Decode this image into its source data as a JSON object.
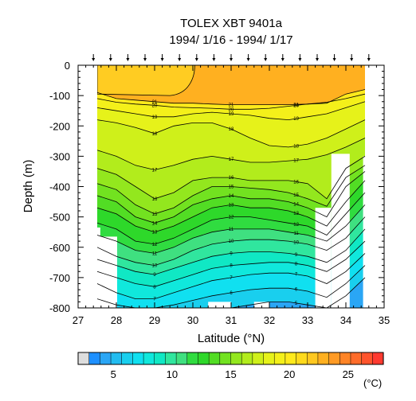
{
  "chart_data": {
    "type": "heatmap",
    "title": "TOLEX XBT 9401a",
    "subtitle": "1994/ 1/16 - 1994/ 1/17",
    "xlabel": "Latitude (°N)",
    "ylabel": "Depth (m)",
    "xlim": [
      27,
      35
    ],
    "ylim": [
      -800,
      0
    ],
    "x_ticks": [
      "27",
      "28",
      "29",
      "30",
      "31",
      "32",
      "33",
      "34",
      "35"
    ],
    "y_ticks": [
      "0",
      "-100",
      "-200",
      "-300",
      "-400",
      "-500",
      "-600",
      "-700",
      "-800"
    ],
    "colorbar": {
      "unit": "(°C)",
      "min": 2,
      "max": 28,
      "tick_labels": [
        "5",
        "10",
        "15",
        "20",
        "25"
      ],
      "tick_values": [
        5,
        10,
        15,
        20,
        25
      ],
      "colors": [
        "#dddddd",
        "#1e90ff",
        "#2aa6f5",
        "#22bcf0",
        "#19cfee",
        "#10e0f0",
        "#10e8dc",
        "#10e8c4",
        "#30e69e",
        "#3fe080",
        "#30dc40",
        "#2ed82a",
        "#52dd24",
        "#72e220",
        "#93e71e",
        "#b2ec1c",
        "#cff01a",
        "#e6f21a",
        "#f4f01a",
        "#ffea1c",
        "#ffda1c",
        "#ffc820",
        "#ffb020",
        "#ff9a24",
        "#ff8426",
        "#ff6c2a",
        "#ff542c",
        "#ff3a30"
      ]
    },
    "xbt_station_latitudes": [
      27.4,
      27.85,
      28.3,
      28.75,
      29.2,
      29.65,
      30.1,
      30.55,
      31.0,
      31.45,
      31.9,
      32.35,
      32.8,
      33.25,
      33.7,
      34.15,
      34.6
    ],
    "section_lat": [
      27.5,
      28.0,
      28.5,
      29.0,
      29.5,
      30.0,
      30.5,
      31.0,
      31.5,
      32.0,
      32.5,
      33.0,
      33.5,
      34.0,
      34.5
    ],
    "isotherms": [
      {
        "t": 21,
        "depth": [
          -90,
          -110,
          -115,
          -120,
          -125,
          -125,
          -128,
          -130,
          -130,
          -130,
          -130,
          -128,
          -125,
          -95,
          -80
        ]
      },
      {
        "t": 20,
        "depth": [
          -110,
          -122,
          -128,
          -132,
          -138,
          -140,
          -142,
          -145,
          -145,
          -142,
          -135,
          -128,
          -122,
          -110,
          -95
        ]
      },
      {
        "t": 19,
        "depth": [
          -140,
          -150,
          -160,
          -170,
          -170,
          -160,
          -155,
          -160,
          -165,
          -175,
          -180,
          -170,
          -160,
          -140,
          -120
        ]
      },
      {
        "t": 18,
        "depth": [
          -180,
          -190,
          -205,
          -225,
          -200,
          -190,
          -190,
          -210,
          -240,
          -265,
          -270,
          -260,
          -240,
          -210,
          -180
        ]
      },
      {
        "t": 17,
        "depth": [
          -280,
          -300,
          -330,
          -345,
          -330,
          -310,
          -300,
          -310,
          -320,
          -320,
          -315,
          -310,
          -295,
          -270,
          -240
        ]
      },
      {
        "t": 16,
        "depth": [
          -340,
          -360,
          -400,
          -440,
          -420,
          -380,
          -370,
          -370,
          -380,
          -380,
          -380,
          -390,
          -440,
          -340,
          -300
        ]
      },
      {
        "t": 15,
        "depth": [
          -390,
          -410,
          -460,
          -490,
          -470,
          -430,
          -400,
          -400,
          -405,
          -410,
          -420,
          -440,
          -465,
          -370,
          -330
        ]
      },
      {
        "t": 14,
        "depth": [
          -430,
          -450,
          -500,
          -520,
          -500,
          -460,
          -440,
          -430,
          -440,
          -440,
          -450,
          -470,
          -500,
          -400,
          -350
        ]
      },
      {
        "t": 13,
        "depth": [
          -470,
          -490,
          -530,
          -550,
          -530,
          -500,
          -470,
          -460,
          -470,
          -470,
          -480,
          -500,
          -530,
          -450,
          -380
        ]
      },
      {
        "t": 12,
        "depth": [
          -520,
          -540,
          -580,
          -590,
          -570,
          -540,
          -510,
          -500,
          -500,
          -510,
          -520,
          -530,
          -560,
          -490,
          -420
        ]
      },
      {
        "t": 11,
        "depth": [
          -560,
          -580,
          -610,
          -620,
          -600,
          -570,
          -550,
          -540,
          -540,
          -540,
          -550,
          -560,
          -580,
          -530,
          -460
        ]
      },
      {
        "t": 10,
        "depth": [
          -600,
          -630,
          -650,
          -660,
          -640,
          -610,
          -590,
          -580,
          -575,
          -575,
          -580,
          -590,
          -610,
          -570,
          -500
        ]
      },
      {
        "t": 9,
        "depth": [
          -640,
          -660,
          -680,
          -690,
          -670,
          -650,
          -630,
          -620,
          -615,
          -615,
          -620,
          -630,
          -650,
          -610,
          -540
        ]
      },
      {
        "t": 8,
        "depth": [
          -680,
          -700,
          -720,
          -730,
          -710,
          -690,
          -670,
          -660,
          -655,
          -650,
          -650,
          -660,
          -680,
          -640,
          -580
        ]
      },
      {
        "t": 7,
        "depth": [
          -720,
          -750,
          -770,
          -770,
          -750,
          -730,
          -710,
          -700,
          -690,
          -685,
          -685,
          -695,
          -720,
          -680,
          -620
        ]
      },
      {
        "t": 6,
        "depth": [
          -770,
          -790,
          -800,
          -800,
          -790,
          -775,
          -760,
          -750,
          -740,
          -735,
          -735,
          -745,
          -765,
          -720,
          -660
        ]
      },
      {
        "t": 5,
        "depth": [
          -800,
          -800,
          -800,
          -800,
          -800,
          -800,
          -800,
          -800,
          -790,
          -780,
          -780,
          -790,
          -800,
          -760,
          -700
        ]
      }
    ]
  }
}
